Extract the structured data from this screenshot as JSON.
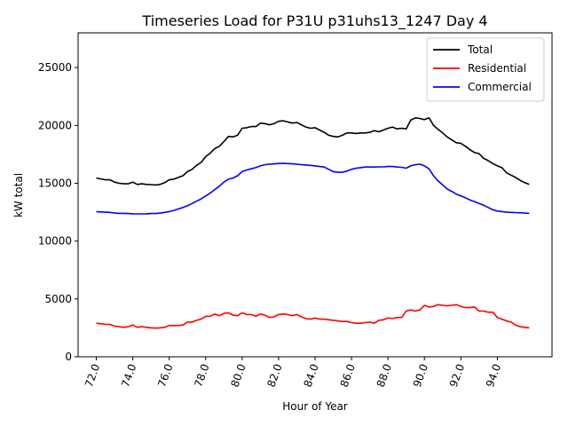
{
  "chart_data": {
    "type": "line",
    "title": "Timeseries Load for P31U p31uhs13_1247  Day 4",
    "xlabel": "Hour of Year",
    "ylabel": "kW total",
    "xlim": [
      71.0,
      97.0
    ],
    "ylim": [
      0,
      28000
    ],
    "x_ticks": [
      72,
      74,
      76,
      78,
      80,
      82,
      84,
      86,
      88,
      90,
      92,
      94
    ],
    "x_tick_labels": [
      "72.0",
      "74.0",
      "76.0",
      "78.0",
      "80.0",
      "82.0",
      "84.0",
      "86.0",
      "88.0",
      "90.0",
      "92.0",
      "94.0"
    ],
    "y_ticks": [
      0,
      5000,
      10000,
      15000,
      20000,
      25000
    ],
    "y_tick_labels": [
      "0",
      "5000",
      "10000",
      "15000",
      "20000",
      "25000"
    ],
    "legend_position": "top-right",
    "x": [
      72.0,
      72.25,
      72.5,
      72.75,
      73.0,
      73.25,
      73.5,
      73.75,
      74.0,
      74.25,
      74.5,
      74.75,
      75.0,
      75.25,
      75.5,
      75.75,
      76.0,
      76.25,
      76.5,
      76.75,
      77.0,
      77.25,
      77.5,
      77.75,
      78.0,
      78.25,
      78.5,
      78.75,
      79.0,
      79.25,
      79.5,
      79.75,
      80.0,
      80.25,
      80.5,
      80.75,
      81.0,
      81.25,
      81.5,
      81.75,
      82.0,
      82.25,
      82.5,
      82.75,
      83.0,
      83.25,
      83.5,
      83.75,
      84.0,
      84.25,
      84.5,
      84.75,
      85.0,
      85.25,
      85.5,
      85.75,
      86.0,
      86.25,
      86.5,
      86.75,
      87.0,
      87.25,
      87.5,
      87.75,
      88.0,
      88.25,
      88.5,
      88.75,
      89.0,
      89.25,
      89.5,
      89.75,
      90.0,
      90.25,
      90.5,
      90.75,
      91.0,
      91.25,
      91.5,
      91.75,
      92.0,
      92.25,
      92.5,
      92.75,
      93.0,
      93.25,
      93.5,
      93.75,
      94.0,
      94.25,
      94.5,
      94.75,
      95.0,
      95.25,
      95.5,
      95.75
    ],
    "series": [
      {
        "name": "Total",
        "color": "#000000",
        "values": [
          15450,
          15370,
          15300,
          15300,
          15100,
          15000,
          14950,
          14950,
          15100,
          14900,
          14950,
          14900,
          14880,
          14850,
          14900,
          15050,
          15300,
          15350,
          15500,
          15650,
          16000,
          16200,
          16550,
          16800,
          17300,
          17600,
          18000,
          18200,
          18600,
          19050,
          19000,
          19150,
          19750,
          19800,
          19900,
          19900,
          20200,
          20150,
          20050,
          20150,
          20350,
          20400,
          20300,
          20200,
          20250,
          20050,
          19850,
          19750,
          19800,
          19600,
          19400,
          19150,
          19050,
          19000,
          19150,
          19350,
          19350,
          19300,
          19350,
          19350,
          19400,
          19550,
          19450,
          19600,
          19750,
          19850,
          19700,
          19750,
          19700,
          20450,
          20650,
          20600,
          20500,
          20650,
          20000,
          19650,
          19350,
          19000,
          18750,
          18500,
          18450,
          18200,
          17900,
          17650,
          17550,
          17150,
          16950,
          16700,
          16500,
          16350,
          15900,
          15700,
          15500,
          15250,
          15050,
          14900
        ]
      },
      {
        "name": "Residential",
        "color": "#ff0000",
        "values": [
          2900,
          2850,
          2800,
          2800,
          2650,
          2600,
          2550,
          2600,
          2750,
          2550,
          2600,
          2550,
          2500,
          2480,
          2500,
          2550,
          2700,
          2700,
          2700,
          2750,
          3000,
          3000,
          3150,
          3250,
          3500,
          3500,
          3700,
          3550,
          3750,
          3800,
          3600,
          3550,
          3800,
          3650,
          3650,
          3500,
          3700,
          3600,
          3400,
          3450,
          3650,
          3700,
          3650,
          3550,
          3650,
          3450,
          3300,
          3250,
          3350,
          3250,
          3250,
          3200,
          3150,
          3100,
          3050,
          3050,
          2950,
          2900,
          2900,
          2950,
          3000,
          2900,
          3150,
          3200,
          3350,
          3300,
          3400,
          3400,
          3950,
          4050,
          3950,
          4050,
          4450,
          4300,
          4350,
          4500,
          4450,
          4400,
          4450,
          4500,
          4350,
          4250,
          4250,
          4300,
          3950,
          3950,
          3850,
          3850,
          3400,
          3250,
          3100,
          3000,
          2750,
          2600,
          2550,
          2500
        ]
      },
      {
        "name": "Commercial",
        "color": "#0000ff",
        "values": [
          12550,
          12520,
          12500,
          12480,
          12420,
          12400,
          12400,
          12380,
          12360,
          12350,
          12350,
          12360,
          12380,
          12380,
          12420,
          12480,
          12550,
          12650,
          12780,
          12900,
          13050,
          13250,
          13450,
          13650,
          13900,
          14150,
          14450,
          14750,
          15100,
          15350,
          15450,
          15650,
          16000,
          16150,
          16250,
          16350,
          16500,
          16600,
          16650,
          16680,
          16700,
          16720,
          16700,
          16680,
          16650,
          16600,
          16580,
          16550,
          16500,
          16450,
          16400,
          16200,
          16000,
          15950,
          15950,
          16050,
          16200,
          16300,
          16350,
          16400,
          16400,
          16400,
          16420,
          16420,
          16450,
          16450,
          16400,
          16380,
          16300,
          16500,
          16600,
          16650,
          16500,
          16250,
          15650,
          15200,
          14850,
          14500,
          14300,
          14050,
          13900,
          13750,
          13550,
          13400,
          13250,
          13100,
          12900,
          12700,
          12600,
          12550,
          12500,
          12480,
          12460,
          12450,
          12420,
          12400
        ]
      }
    ]
  }
}
